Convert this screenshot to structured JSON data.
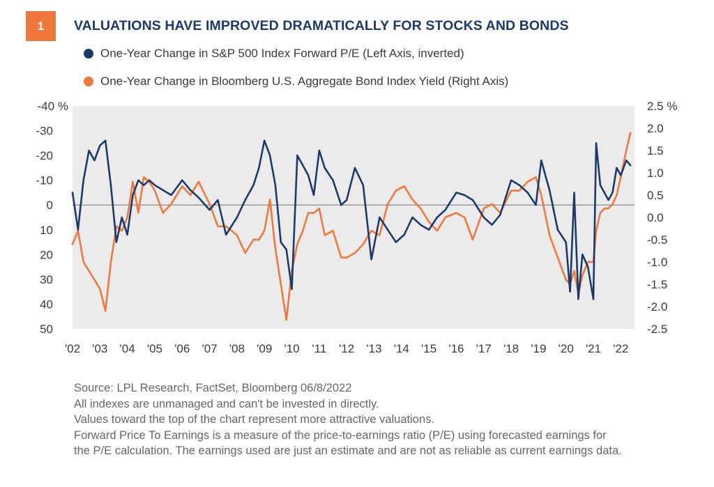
{
  "figure": {
    "number": "1",
    "title": "VALUATIONS HAVE IMPROVED DRAMATICALLY FOR STOCKS AND BONDS"
  },
  "colors": {
    "pe_series": "#1b3a6b",
    "yield_series": "#f0783c",
    "plot_background": "#ebebeb",
    "zero_line": "#8a8a8a",
    "badge": "#f0783c"
  },
  "chart_data": {
    "type": "line",
    "grid": false,
    "legend_position": "top-left",
    "x_tick_labels": [
      "'02",
      "'03",
      "'04",
      "'05",
      "'06",
      "'07",
      "'08",
      "'09",
      "'10",
      "'11",
      "'12",
      "'13",
      "'14",
      "'15",
      "'16",
      "'17",
      "'18",
      "'19",
      "'20",
      "'21",
      "'22"
    ],
    "x_range": [
      2002,
      2022.5
    ],
    "left_axis": {
      "inverted": true,
      "ylim": [
        -40,
        50
      ],
      "tick_values": [
        -40,
        -30,
        -20,
        -10,
        0,
        10,
        20,
        30,
        40,
        50
      ],
      "tick_labels": [
        "-40 %",
        "-30",
        "-20",
        "-10",
        "0",
        "10",
        "20",
        "30",
        "40",
        "50"
      ]
    },
    "right_axis": {
      "ylim": [
        -2.5,
        2.5
      ],
      "tick_values": [
        2.5,
        2.0,
        1.5,
        1.0,
        0.5,
        0.0,
        -0.5,
        -1.0,
        -1.5,
        -2.0,
        -2.5
      ],
      "tick_labels": [
        "2.5 %",
        "2.0",
        "1.5",
        "1.0",
        "0.5",
        "0.0",
        "-0.5",
        "-1.0",
        "-1.5",
        "-2.0",
        "-2.5"
      ]
    },
    "series": [
      {
        "name": "One-Year Change in S&P 500 Index Forward P/E  (Left Axis, inverted)",
        "axis": "left",
        "x": [
          2002.0,
          2002.2,
          2002.4,
          2002.6,
          2002.8,
          2003.0,
          2003.2,
          2003.4,
          2003.6,
          2003.8,
          2004.0,
          2004.2,
          2004.4,
          2004.6,
          2004.8,
          2005.0,
          2005.3,
          2005.6,
          2006.0,
          2006.3,
          2006.6,
          2007.0,
          2007.3,
          2007.6,
          2008.0,
          2008.3,
          2008.6,
          2008.8,
          2009.0,
          2009.2,
          2009.4,
          2009.6,
          2009.8,
          2010.0,
          2010.2,
          2010.4,
          2010.6,
          2010.8,
          2011.0,
          2011.2,
          2011.5,
          2011.8,
          2012.0,
          2012.3,
          2012.6,
          2012.9,
          2013.2,
          2013.5,
          2013.8,
          2014.1,
          2014.4,
          2014.7,
          2015.0,
          2015.3,
          2015.6,
          2016.0,
          2016.3,
          2016.6,
          2017.0,
          2017.3,
          2017.6,
          2018.0,
          2018.3,
          2018.6,
          2018.9,
          2019.1,
          2019.4,
          2019.7,
          2020.0,
          2020.15,
          2020.3,
          2020.45,
          2020.6,
          2020.8,
          2021.0,
          2021.1,
          2021.25,
          2021.4,
          2021.55,
          2021.7,
          2021.85,
          2022.0,
          2022.2,
          2022.35
        ],
        "values": [
          -5,
          10,
          -10,
          -22,
          -18,
          -24,
          -26,
          -8,
          15,
          5,
          12,
          -4,
          -10,
          -8,
          -10,
          -8,
          -6,
          -4,
          -10,
          -6,
          -3,
          2,
          -2,
          12,
          5,
          -2,
          -8,
          -15,
          -26,
          -20,
          -8,
          15,
          18,
          34,
          -20,
          -16,
          -12,
          -4,
          -22,
          -15,
          -10,
          0,
          -2,
          -15,
          -8,
          22,
          5,
          10,
          15,
          12,
          5,
          8,
          10,
          5,
          2,
          -5,
          -4,
          -2,
          5,
          8,
          4,
          -10,
          -8,
          -5,
          0,
          -18,
          -6,
          10,
          15,
          35,
          -5,
          38,
          20,
          25,
          38,
          -25,
          -8,
          -5,
          -2,
          -5,
          -15,
          -12,
          -18,
          -16
        ]
      },
      {
        "name": "One-Year Change in Bloomberg U.S. Aggregate Bond Index Yield  (Right Axis)",
        "axis": "right",
        "x": [
          2002.0,
          2002.2,
          2002.4,
          2002.6,
          2002.8,
          2003.0,
          2003.2,
          2003.4,
          2003.6,
          2003.8,
          2004.0,
          2004.2,
          2004.4,
          2004.6,
          2004.8,
          2005.0,
          2005.3,
          2005.6,
          2006.0,
          2006.3,
          2006.6,
          2007.0,
          2007.3,
          2007.6,
          2008.0,
          2008.3,
          2008.6,
          2008.8,
          2009.0,
          2009.2,
          2009.4,
          2009.6,
          2009.8,
          2010.0,
          2010.2,
          2010.4,
          2010.6,
          2010.8,
          2011.0,
          2011.2,
          2011.5,
          2011.8,
          2012.0,
          2012.3,
          2012.6,
          2012.9,
          2013.2,
          2013.5,
          2013.8,
          2014.1,
          2014.4,
          2014.7,
          2015.0,
          2015.3,
          2015.6,
          2016.0,
          2016.3,
          2016.6,
          2017.0,
          2017.3,
          2017.6,
          2018.0,
          2018.3,
          2018.6,
          2018.9,
          2019.1,
          2019.4,
          2019.7,
          2020.0,
          2020.15,
          2020.3,
          2020.45,
          2020.6,
          2020.8,
          2021.0,
          2021.1,
          2021.25,
          2021.4,
          2021.55,
          2021.7,
          2021.85,
          2022.0,
          2022.2,
          2022.35
        ],
        "values": [
          -0.6,
          -0.3,
          -1.0,
          -1.2,
          -1.4,
          -1.6,
          -2.1,
          -1.0,
          -0.2,
          -0.3,
          0.0,
          0.8,
          0.1,
          0.9,
          0.8,
          0.6,
          0.1,
          0.3,
          0.7,
          0.5,
          0.8,
          0.3,
          -0.2,
          -0.2,
          -0.4,
          -0.8,
          -0.5,
          -0.5,
          -0.3,
          0.4,
          -0.7,
          -1.5,
          -2.3,
          -1.2,
          -0.6,
          -0.3,
          0.1,
          0.1,
          0.2,
          -0.4,
          -0.3,
          -0.9,
          -0.9,
          -0.8,
          -0.6,
          -0.3,
          -0.4,
          0.3,
          0.6,
          0.7,
          0.4,
          0.2,
          -0.1,
          -0.3,
          0.0,
          0.1,
          0.0,
          -0.5,
          0.2,
          0.3,
          0.1,
          0.6,
          0.6,
          0.8,
          0.9,
          0.5,
          -0.4,
          -0.9,
          -1.4,
          -1.5,
          -1.2,
          -1.7,
          -1.3,
          -1.0,
          -1.0,
          -0.3,
          0.1,
          0.2,
          0.2,
          0.3,
          0.5,
          0.9,
          1.5,
          1.9
        ]
      }
    ]
  },
  "notes": [
    "Source: LPL Research, FactSet, Bloomberg  06/8/2022",
    "All indexes are unmanaged and can't be invested in directly.",
    "Values toward the top of the chart represent more attractive valuations.",
    "Forward Price To Earnings is a measure of the price-to-earnings ratio (P/E) using forecasted earnings for",
    "the P/E calculation.  The earnings used are just an estimate and are not as reliable as current earnings data."
  ]
}
